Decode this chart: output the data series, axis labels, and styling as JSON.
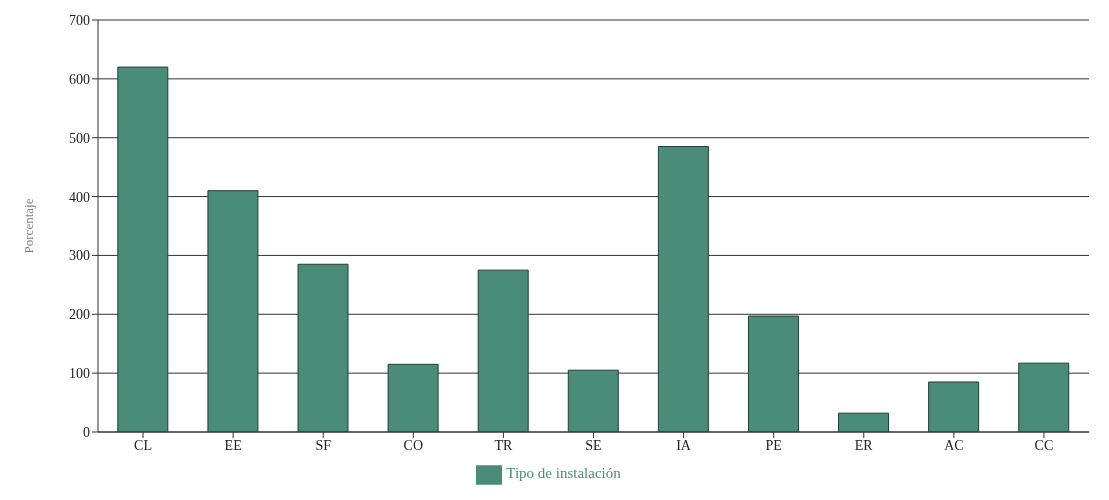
{
  "chart_data": {
    "type": "bar",
    "ylabel": "Porcentaje",
    "categories": [
      "CL",
      "EE",
      "SF",
      "CO",
      "TR",
      "SE",
      "IA",
      "PE",
      "ER",
      "AC",
      "CC"
    ],
    "series": [
      {
        "name": "Tipo de instalación",
        "color": "#4a8c78",
        "values": [
          620,
          410,
          285,
          115,
          275,
          105,
          485,
          197,
          32,
          85,
          117
        ]
      }
    ],
    "ylim": [
      0,
      700
    ],
    "yticks": [
      0,
      100,
      200,
      300,
      400,
      500,
      600,
      700
    ],
    "grid": "y",
    "legend": "bottom"
  }
}
